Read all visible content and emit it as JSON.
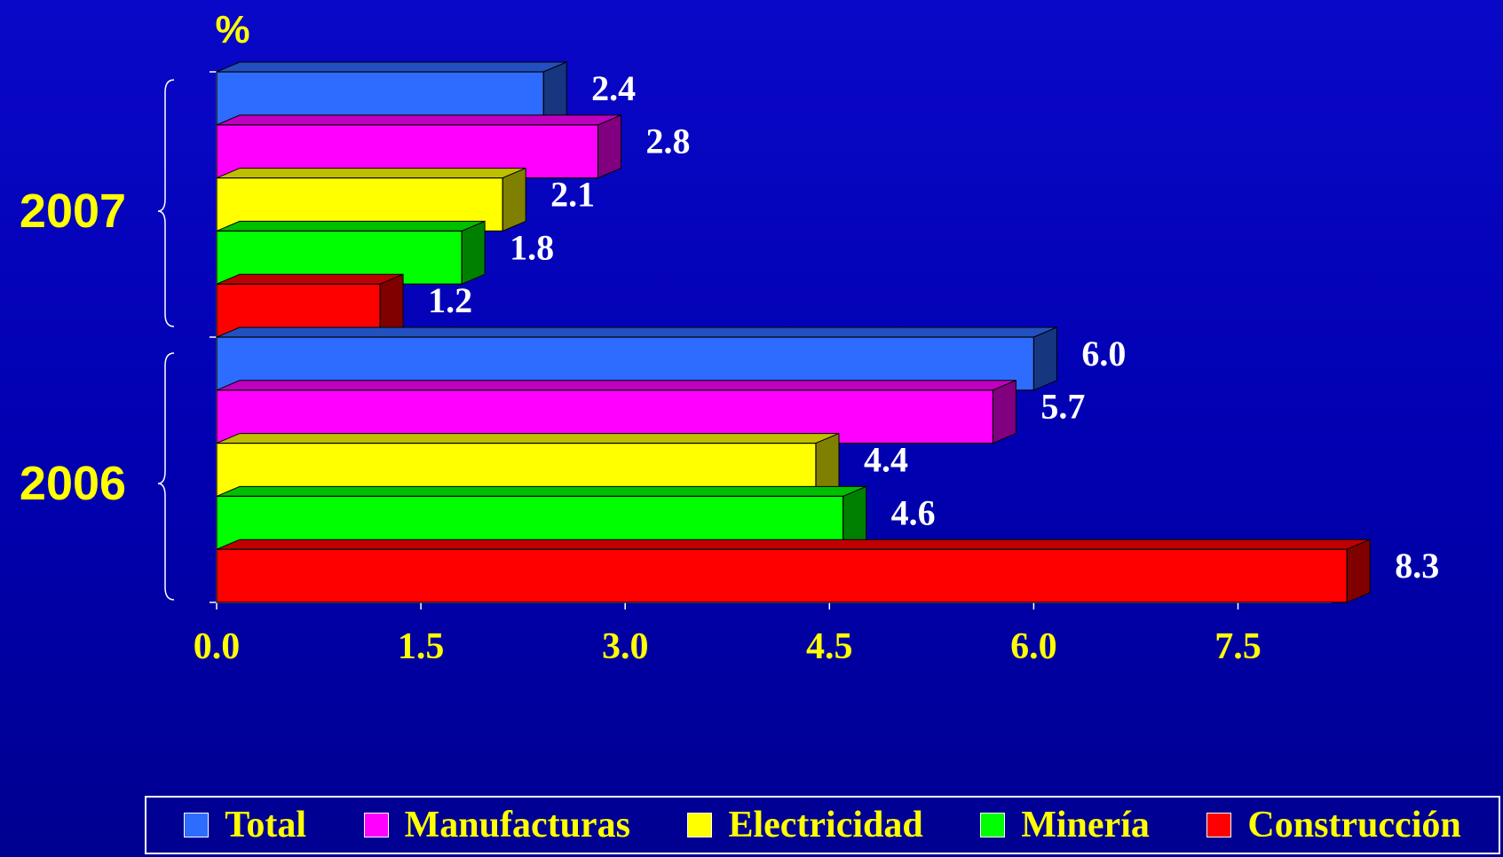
{
  "chart_data": {
    "type": "bar",
    "orientation": "horizontal",
    "unit_label": "%",
    "groups": [
      "2007",
      "2006"
    ],
    "series": [
      {
        "name": "Total",
        "color": "#2e6bff",
        "values": [
          2.4,
          6.0
        ]
      },
      {
        "name": "Manufacturas",
        "color": "#ff00ff",
        "values": [
          2.8,
          5.7
        ]
      },
      {
        "name": "Electricidad",
        "color": "#ffff00",
        "values": [
          2.1,
          4.4
        ]
      },
      {
        "name": "Minería",
        "color": "#00ff00",
        "values": [
          1.8,
          4.6
        ]
      },
      {
        "name": "Construcción",
        "color": "#ff0000",
        "values": [
          1.2,
          8.3
        ]
      }
    ],
    "data_labels": [
      [
        "2.4",
        "6.0"
      ],
      [
        "2.8",
        "5.7"
      ],
      [
        "2.1",
        "4.4"
      ],
      [
        "1.8",
        "4.6"
      ],
      [
        "1.2",
        "8.3"
      ]
    ],
    "x_ticks": [
      "0.0",
      "1.5",
      "3.0",
      "4.5",
      "6.0",
      "7.5"
    ],
    "xlim": [
      0,
      8.3
    ],
    "legend_placement": "bottom",
    "grid": false
  },
  "colors": {
    "background": "#0000c0",
    "label_text": "#ffff00",
    "value_text": "#ffffff"
  }
}
